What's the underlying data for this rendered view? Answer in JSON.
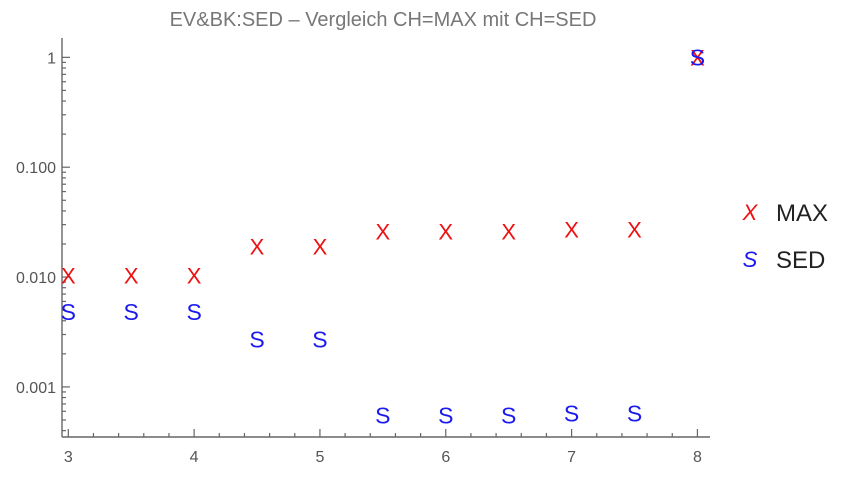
{
  "chart_data": {
    "type": "scatter",
    "title": "EV&BK:SED – Vergleich CH=MAX mit CH=SED",
    "xlabel": "",
    "ylabel": "",
    "xlim": [
      2.95,
      8.1
    ],
    "ylim": [
      0.00035,
      1.5
    ],
    "yscale": "log",
    "grid": false,
    "legend_position": "right",
    "x_ticks": [
      3,
      4,
      5,
      6,
      7,
      8
    ],
    "x_tick_labels": [
      "3",
      "4",
      "5",
      "6",
      "7",
      "8"
    ],
    "y_ticks": [
      0.001,
      0.01,
      0.1,
      1
    ],
    "y_tick_labels": [
      "0.001",
      "0.010",
      "0.100",
      "1"
    ],
    "series": [
      {
        "name": "MAX",
        "marker": "X",
        "color": "#ee1111",
        "x": [
          3,
          3.5,
          4,
          4.5,
          5,
          5.5,
          6,
          6.5,
          7,
          7.5,
          8
        ],
        "y": [
          0.0103,
          0.0103,
          0.0103,
          0.019,
          0.019,
          0.026,
          0.026,
          0.026,
          0.027,
          0.027,
          1.0
        ]
      },
      {
        "name": "SED",
        "marker": "S",
        "color": "#1a1aee",
        "x": [
          3,
          3.5,
          4,
          4.5,
          5,
          5.5,
          6,
          6.5,
          7,
          7.5,
          8
        ],
        "y": [
          0.0048,
          0.0048,
          0.0048,
          0.0027,
          0.0027,
          0.00055,
          0.00055,
          0.00055,
          0.00057,
          0.00057,
          1.0
        ]
      }
    ]
  }
}
